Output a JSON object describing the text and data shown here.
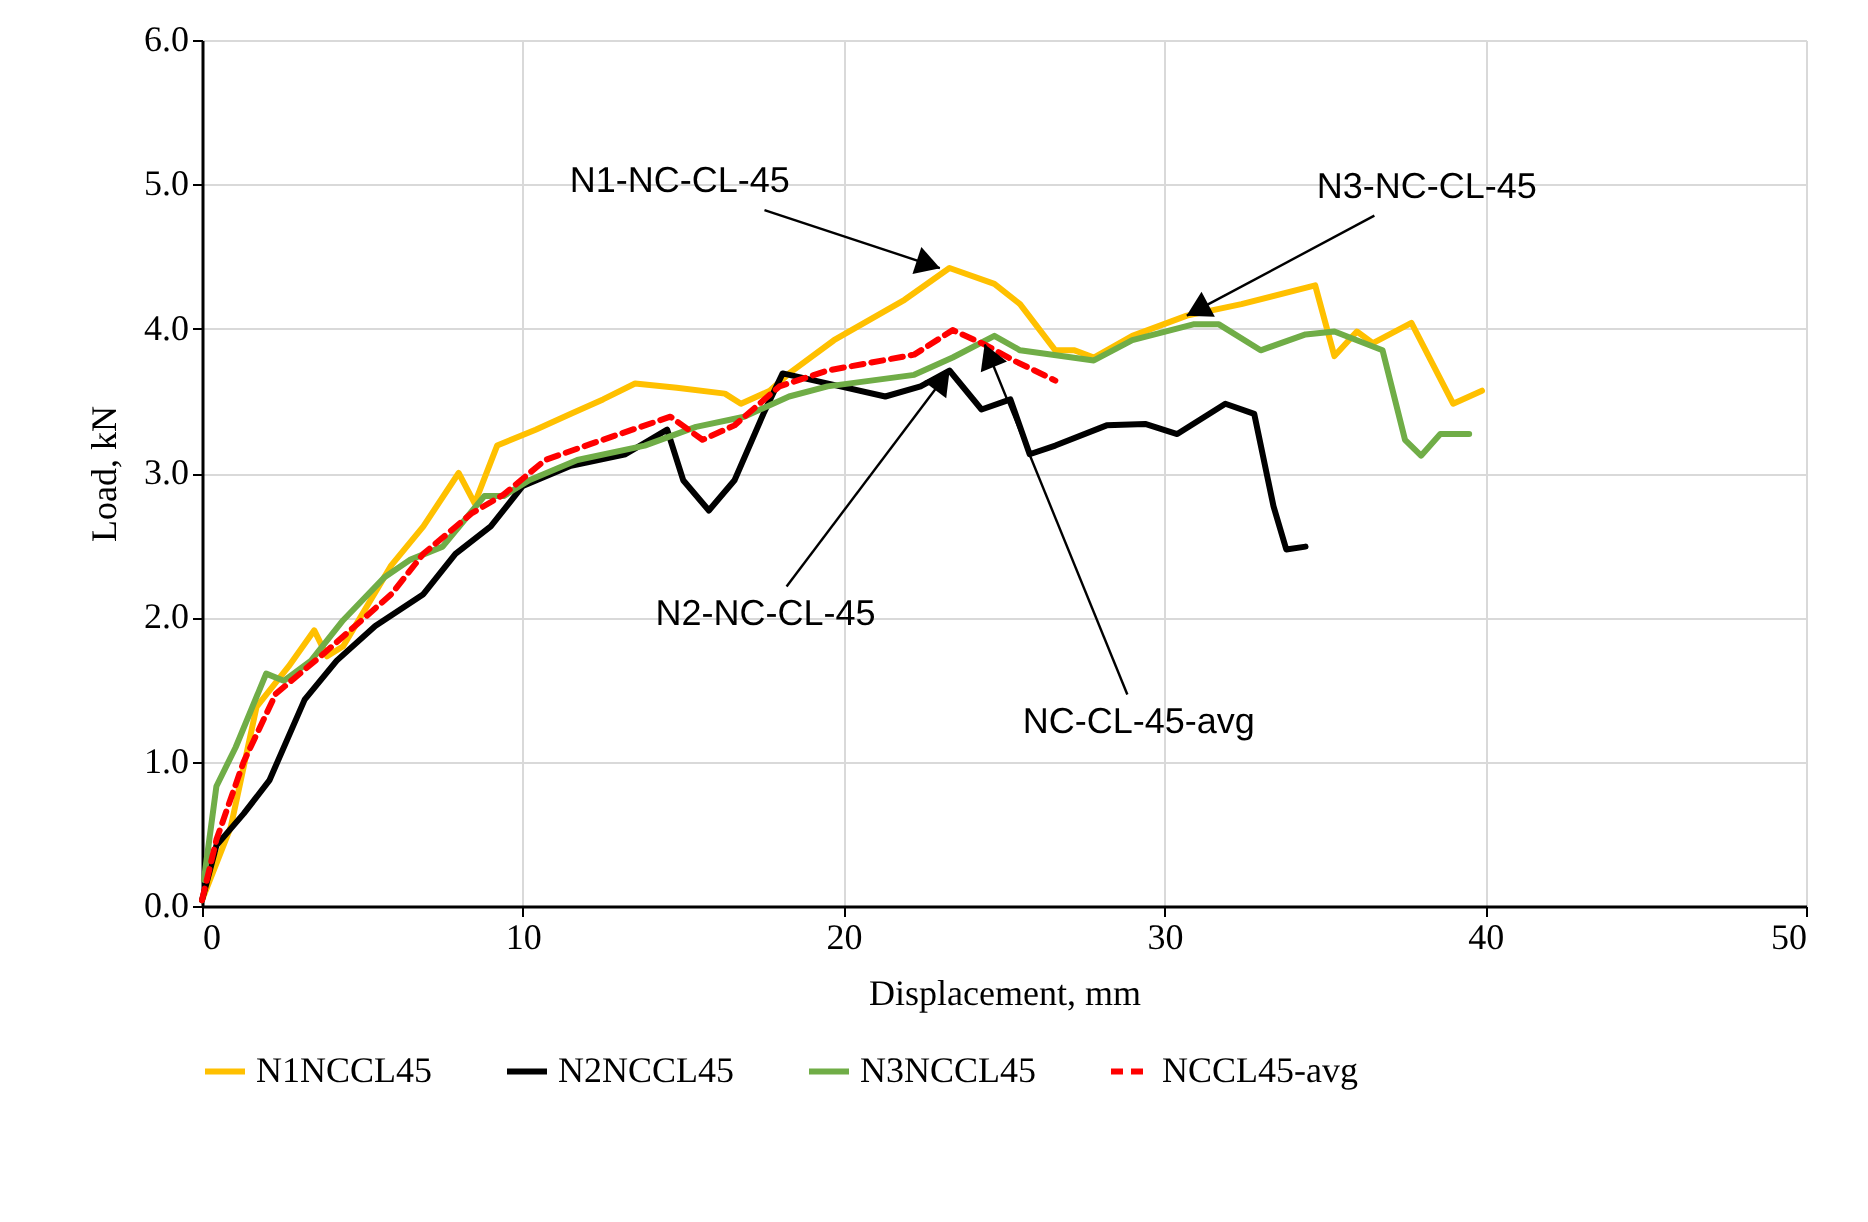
{
  "chart_data": {
    "type": "line",
    "xlabel": "Displacement, mm",
    "ylabel": "Load, kN",
    "xlim": [
      0,
      50
    ],
    "ylim": [
      0,
      6
    ],
    "xticks": [
      0,
      10,
      20,
      30,
      40,
      50
    ],
    "yticks": [
      {
        "value": 0,
        "label": "0.0"
      },
      {
        "value": 1,
        "label": "1.0"
      },
      {
        "value": 2,
        "label": "2.0"
      },
      {
        "value": 3,
        "label": "3.0"
      },
      {
        "value": 4,
        "label": "4.0"
      },
      {
        "value": 5,
        "label": "5.0"
      },
      {
        "value": 6,
        "label": "6.0"
      }
    ],
    "grid": true,
    "legend": "bottom",
    "marker": "none",
    "series": [
      {
        "name": "N1NCCL45",
        "color": "#ffc000",
        "line_style": "solid",
        "x": [
          0,
          0.9,
          1.7,
          2.7,
          3.5,
          3.9,
          4.4,
          5.9,
          6.9,
          8.0,
          8.5,
          9.2,
          10.4,
          11.5,
          12.5,
          13.5,
          14.8,
          16.3,
          16.8,
          17.7,
          18.3,
          19.7,
          21.9,
          23.3,
          24.7,
          25.5,
          26.6,
          27.2,
          27.8,
          29.0,
          30.7,
          32.4,
          34.7,
          35.3,
          36.0,
          36.5,
          37.7,
          39.0,
          39.9
        ],
        "values": [
          0.04,
          0.55,
          1.38,
          1.66,
          1.91,
          1.73,
          1.8,
          2.36,
          2.63,
          3.0,
          2.79,
          3.19,
          3.3,
          3.41,
          3.51,
          3.62,
          3.59,
          3.55,
          3.48,
          3.57,
          3.69,
          3.92,
          4.2,
          4.42,
          4.31,
          4.17,
          3.85,
          3.85,
          3.8,
          3.95,
          4.09,
          4.17,
          4.3,
          3.81,
          3.98,
          3.9,
          4.04,
          3.48,
          3.57
        ]
      },
      {
        "name": "N2NCCL45",
        "color": "#000000",
        "line_style": "solid",
        "x": [
          0,
          0.45,
          1.3,
          2.1,
          3.2,
          4.2,
          5.4,
          6.9,
          7.9,
          9.0,
          10.0,
          11.5,
          13.2,
          14.5,
          15.0,
          15.8,
          16.6,
          17.5,
          18.1,
          19.9,
          21.3,
          22.4,
          23.3,
          24.3,
          25.2,
          25.8,
          26.6,
          28.2,
          29.4,
          30.4,
          31.9,
          32.8,
          33.4,
          33.8,
          34.4
        ],
        "values": [
          0.04,
          0.42,
          0.64,
          0.87,
          1.43,
          1.7,
          1.94,
          2.16,
          2.44,
          2.63,
          2.91,
          3.05,
          3.13,
          3.3,
          2.95,
          2.74,
          2.95,
          3.41,
          3.69,
          3.6,
          3.53,
          3.6,
          3.71,
          3.44,
          3.51,
          3.13,
          3.19,
          3.33,
          3.34,
          3.27,
          3.48,
          3.41,
          2.77,
          2.47,
          2.49
        ]
      },
      {
        "name": "N3NCCL45",
        "color": "#70ad47",
        "line_style": "solid",
        "x": [
          0.06,
          0.45,
          1.05,
          2.0,
          2.55,
          3.4,
          4.4,
          5.7,
          6.5,
          7.5,
          8.8,
          9.4,
          10.2,
          11.7,
          13.8,
          15.4,
          16.9,
          18.3,
          19.5,
          22.2,
          23.4,
          24.7,
          25.5,
          27.8,
          29.0,
          30.9,
          31.7,
          33.0,
          34.4,
          35.3,
          36.8,
          37.5,
          38.0,
          38.6,
          39.5
        ],
        "values": [
          0.18,
          0.83,
          1.1,
          1.61,
          1.56,
          1.7,
          1.98,
          2.28,
          2.4,
          2.49,
          2.84,
          2.84,
          2.95,
          3.09,
          3.19,
          3.32,
          3.39,
          3.53,
          3.6,
          3.68,
          3.8,
          3.95,
          3.85,
          3.78,
          3.92,
          4.03,
          4.03,
          3.85,
          3.96,
          3.98,
          3.85,
          3.23,
          3.12,
          3.27,
          3.27
        ]
      },
      {
        "name": "NCCL45-avg",
        "color": "#ff0000",
        "line_style": "dashed",
        "x": [
          0,
          0.45,
          1.3,
          2.3,
          3.8,
          5.9,
          6.9,
          8.4,
          9.4,
          10.7,
          12.1,
          14.6,
          15.6,
          16.6,
          18.0,
          19.5,
          22.2,
          23.4,
          24.4,
          25.3,
          26.6
        ],
        "values": [
          0.04,
          0.46,
          1.0,
          1.47,
          1.75,
          2.16,
          2.44,
          2.72,
          2.85,
          3.09,
          3.2,
          3.39,
          3.23,
          3.33,
          3.6,
          3.71,
          3.82,
          3.99,
          3.89,
          3.78,
          3.64
        ]
      }
    ],
    "annotations": [
      {
        "text": "N1-NC-CL-45",
        "x": 23.0,
        "y": 4.42
      },
      {
        "text": "N3-NC-CL-45",
        "x": 30.7,
        "y": 4.09
      },
      {
        "text": "N2-NC-CL-45",
        "x": 23.3,
        "y": 3.71
      },
      {
        "text": "NC-CL-45-avg",
        "x": 24.4,
        "y": 3.89
      }
    ]
  }
}
